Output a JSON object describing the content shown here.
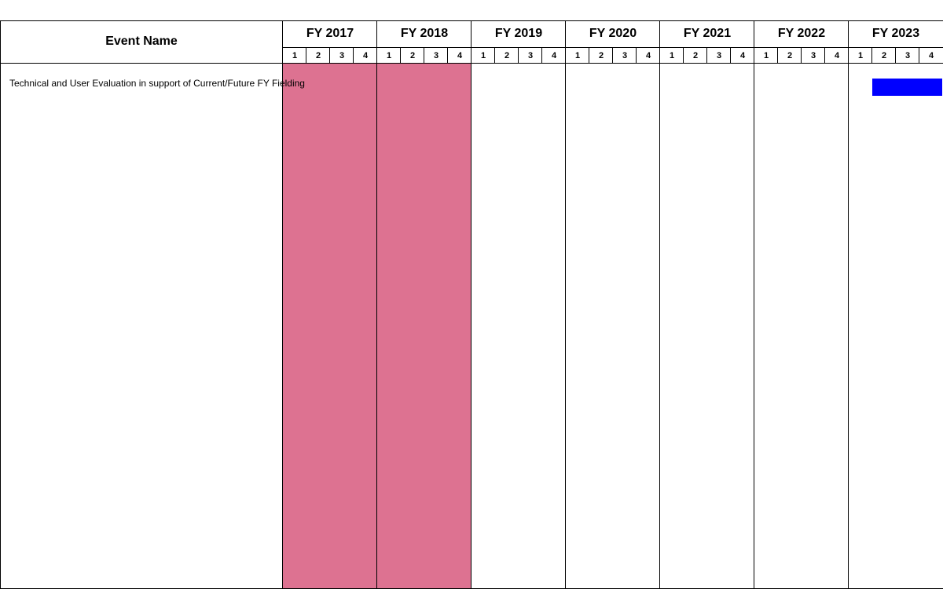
{
  "header": {
    "event_name_label": "Event Name"
  },
  "chart_data": {
    "type": "gantt",
    "years": [
      "FY 2017",
      "FY 2018",
      "FY 2019",
      "FY 2020",
      "FY 2021",
      "FY 2022",
      "FY 2023"
    ],
    "quarters": [
      "1",
      "2",
      "3",
      "4"
    ],
    "highlighted_years": [
      "FY 2017",
      "FY 2018"
    ],
    "events": [
      {
        "name": "Technical and User Evaluation in support of Current/Future FY Fielding",
        "start_year": "FY 2023",
        "start_quarter": 2,
        "end_year": "FY 2023",
        "end_quarter": 4
      }
    ]
  },
  "colors": {
    "highlight": "#dd7291",
    "bar": "#0000ff",
    "grid": "#000000"
  }
}
